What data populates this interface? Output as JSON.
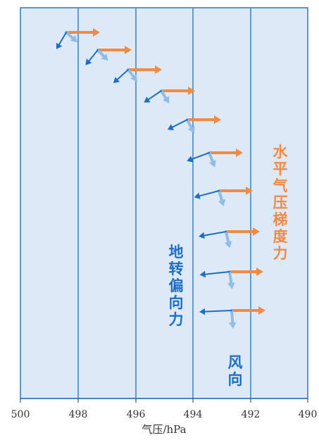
{
  "axis": {
    "ticks": [
      "500",
      "498",
      "496",
      "494",
      "492",
      "490"
    ],
    "title": "气压/hPa"
  },
  "labels": {
    "pressure_gradient_force": "水平气压梯度力",
    "coriolis_force": "地转偏向力",
    "wind_direction": "风向"
  },
  "colors": {
    "background": "#dde9f7",
    "isobar": "#2e78c2",
    "frame": "#2e78c2",
    "pressure_gradient_force": "#f08a44",
    "coriolis_force": "#1c6fc4",
    "wind_direction": "#8fbde6",
    "text": "#333333"
  }
}
